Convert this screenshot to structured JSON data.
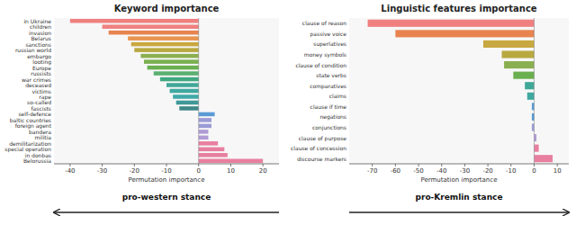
{
  "chart_data": [
    {
      "type": "bar",
      "orientation": "horizontal",
      "title": "Keyword importance",
      "xlabel": "Permutation importance",
      "annotation": "pro-western stance",
      "categories": [
        "in Ukraine",
        "children",
        "invasion",
        "Belarus",
        "sanctions",
        "russian world",
        "embargo",
        "looting",
        "Europe",
        "russists",
        "war crimes",
        "deceased",
        "victims",
        "rape",
        "so-called",
        "fascists",
        "self-defence",
        "baltic countries",
        "foreign agent",
        "bandera",
        "militia",
        "demilitarization",
        "special operation",
        "in donbas",
        "Belorussia"
      ],
      "values": [
        -40,
        -30,
        -28,
        -22,
        -21,
        -20,
        -18,
        -17,
        -16,
        -14,
        -12,
        -10,
        -9,
        -8,
        -7,
        -6,
        5,
        4,
        4,
        3,
        3,
        6,
        8,
        9,
        20
      ],
      "colors": [
        "#f08080",
        "#f08080",
        "#e8834f",
        "#e8934f",
        "#c8a840",
        "#b8a840",
        "#8aaf50",
        "#7aaf50",
        "#6aaf50",
        "#5aaf70",
        "#40a880",
        "#40a898",
        "#40a8a0",
        "#40a8a8",
        "#409898",
        "#408888",
        "#5b9bd5",
        "#9b9bd5",
        "#9b9bd5",
        "#b09bd5",
        "#b09bd5",
        "#e87fa0",
        "#e87fa0",
        "#e87fa0",
        "#e87fa0"
      ],
      "xlim": [
        -45,
        25
      ],
      "xticks": [
        -40,
        -30,
        -20,
        -10,
        0,
        10,
        20
      ],
      "grid": false
    },
    {
      "type": "bar",
      "orientation": "horizontal",
      "title": "Linguistic features importance",
      "xlabel": "Permutation importance",
      "annotation": "pro-Kremlin stance",
      "categories": [
        "clause of reason",
        "passive voice",
        "superlatives",
        "money symbols",
        "clause of condition",
        "state verbs",
        "comparatives",
        "claims",
        "clause if time",
        "negations",
        "conjunctions",
        "clause of purpose",
        "clause of concession",
        "discourse markers"
      ],
      "values": [
        -72,
        -60,
        -22,
        -14,
        -13,
        -9,
        -4,
        -3,
        -1,
        -1,
        -1,
        1,
        2,
        8
      ],
      "colors": [
        "#f08080",
        "#e8834f",
        "#c8a840",
        "#b8a840",
        "#8aaf50",
        "#6aaf50",
        "#40a898",
        "#40a8a0",
        "#5b9bd5",
        "#5b9bd5",
        "#9b9bd5",
        "#b09bd5",
        "#e87fa0",
        "#e87fa0"
      ],
      "xlim": [
        -80,
        15
      ],
      "xticks": [
        -70,
        -60,
        -50,
        -40,
        -30,
        -20,
        -10,
        0,
        10
      ],
      "grid": false
    }
  ]
}
